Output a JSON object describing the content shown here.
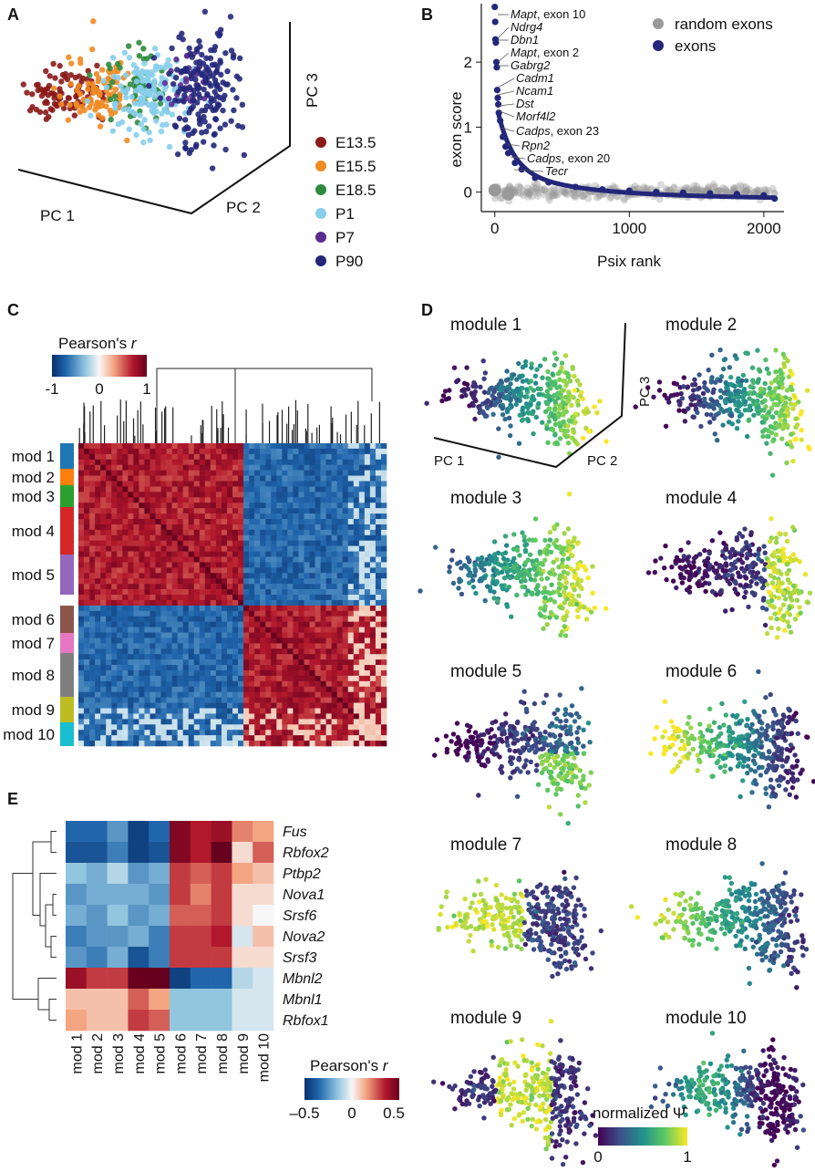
{
  "panels": {
    "a": {
      "letter": "A",
      "axes": [
        "PC 1",
        "PC 2",
        "PC 3"
      ],
      "legend": [
        {
          "label": "E13.5",
          "color": "#8b1a1a"
        },
        {
          "label": "E15.5",
          "color": "#f08a24"
        },
        {
          "label": "E18.5",
          "color": "#2e8b3e"
        },
        {
          "label": "P1",
          "color": "#87ceeb"
        },
        {
          "label": "P7",
          "color": "#5a2d8e"
        },
        {
          "label": "P90",
          "color": "#23277a"
        }
      ]
    },
    "b": {
      "letter": "B",
      "legend": [
        {
          "label": "random exons",
          "color": "#999999"
        },
        {
          "label": "exons",
          "color": "#23277a"
        }
      ],
      "annotations": [
        {
          "gene": "Mapt",
          "suffix": ", exon 10"
        },
        {
          "gene": "Ndrg4",
          "suffix": ""
        },
        {
          "gene": "Dbn1",
          "suffix": ""
        },
        {
          "gene": "Mapt",
          "suffix": ", exon 2"
        },
        {
          "gene": "Gabrg2",
          "suffix": ""
        },
        {
          "gene": "Cadm1",
          "suffix": ""
        },
        {
          "gene": "Ncam1",
          "suffix": ""
        },
        {
          "gene": "Dst",
          "suffix": ""
        },
        {
          "gene": "Morf4l2",
          "suffix": ""
        },
        {
          "gene": "Cadps",
          "suffix": ", exon 23"
        },
        {
          "gene": "Rpn2",
          "suffix": ""
        },
        {
          "gene": "Cadps",
          "suffix": ", exon 20"
        },
        {
          "gene": "Tecr",
          "suffix": ""
        }
      ]
    },
    "c": {
      "letter": "C",
      "colorbar_title": "Pearson's ",
      "colorbar_title_var": "r",
      "colorbar_ticks": [
        "-1",
        "0",
        "1"
      ],
      "modules": [
        {
          "label": "mod 1",
          "color": "#1f77b4"
        },
        {
          "label": "mod 2",
          "color": "#ff7f0e"
        },
        {
          "label": "mod 3",
          "color": "#2ca02c"
        },
        {
          "label": "mod 4",
          "color": "#d62728"
        },
        {
          "label": "mod 5",
          "color": "#9467bd"
        },
        {
          "label": "mod 6",
          "color": "#8c564b"
        },
        {
          "label": "mod 7",
          "color": "#e377c2"
        },
        {
          "label": "mod 8",
          "color": "#7f7f7f"
        },
        {
          "label": "mod 9",
          "color": "#bcbd22"
        },
        {
          "label": "mod 10",
          "color": "#17becf"
        }
      ]
    },
    "d": {
      "letter": "D",
      "modules": [
        "module 1",
        "module 2",
        "module 3",
        "module 4",
        "module 5",
        "module 6",
        "module 7",
        "module 8",
        "module 9",
        "module 10"
      ],
      "axes": [
        "PC 1",
        "PC 2",
        "PC 3"
      ],
      "colorbar_title": "normalized ",
      "colorbar_symbol": "Ψ̂",
      "colorbar_ticks": [
        "0",
        "1"
      ]
    },
    "e": {
      "letter": "E",
      "rows": [
        "Fus",
        "Rbfox2",
        "Ptbp2",
        "Nova1",
        "Srsf6",
        "Nova2",
        "Srsf3",
        "Mbnl2",
        "Mbnl1",
        "Rbfox1"
      ],
      "cols": [
        "mod 1",
        "mod 2",
        "mod 3",
        "mod 4",
        "mod 5",
        "mod 6",
        "mod 7",
        "mod 8",
        "mod 9",
        "mod 10"
      ],
      "colorbar_title": "Pearson's ",
      "colorbar_title_var": "r",
      "colorbar_ticks": [
        "–0.5",
        "0",
        "0.5"
      ]
    }
  },
  "chart_data": [
    {
      "type": "scatter",
      "panel": "B",
      "xlabel": "Psix rank",
      "ylabel": "exon score",
      "xlim": [
        -100,
        2150
      ],
      "ylim": [
        -0.3,
        2.9
      ],
      "x_ticks": [
        0,
        1000,
        2000
      ],
      "y_ticks": [
        0,
        1,
        2
      ],
      "grid": false,
      "legend_position": "top-right",
      "series": [
        {
          "name": "random exons",
          "color": "#999999",
          "points": [
            [
              0,
              0.04
            ],
            [
              50,
              0.02
            ],
            [
              100,
              -0.03
            ],
            [
              200,
              0.05
            ],
            [
              400,
              -0.02
            ],
            [
              600,
              0.03
            ],
            [
              800,
              -0.04
            ],
            [
              1000,
              0.02
            ],
            [
              1200,
              -0.03
            ],
            [
              1400,
              0.04
            ],
            [
              1600,
              -0.02
            ],
            [
              1800,
              0.03
            ],
            [
              2000,
              -0.03
            ],
            [
              2080,
              0.02
            ]
          ]
        },
        {
          "name": "exons",
          "color": "#23277a",
          "points": [
            [
              0,
              2.85
            ],
            [
              3,
              2.62
            ],
            [
              5,
              2.35
            ],
            [
              8,
              2.3
            ],
            [
              12,
              2.0
            ],
            [
              15,
              1.92
            ],
            [
              18,
              1.57
            ],
            [
              22,
              1.45
            ],
            [
              26,
              1.35
            ],
            [
              30,
              1.22
            ],
            [
              40,
              1.1
            ],
            [
              60,
              0.85
            ],
            [
              80,
              0.7
            ],
            [
              100,
              0.6
            ],
            [
              150,
              0.45
            ],
            [
              200,
              0.35
            ],
            [
              300,
              0.22
            ],
            [
              400,
              0.15
            ],
            [
              600,
              0.08
            ],
            [
              800,
              0.04
            ],
            [
              1000,
              0.02
            ],
            [
              1200,
              0.0
            ],
            [
              1400,
              -0.01
            ],
            [
              1600,
              -0.02
            ],
            [
              1800,
              -0.03
            ],
            [
              2000,
              -0.05
            ],
            [
              2080,
              -0.1
            ]
          ]
        }
      ]
    },
    {
      "type": "heatmap",
      "panel": "E",
      "rows": [
        "Fus",
        "Rbfox2",
        "Ptbp2",
        "Nova1",
        "Srsf6",
        "Nova2",
        "Srsf3",
        "Mbnl2",
        "Mbnl1",
        "Rbfox1"
      ],
      "cols": [
        "mod 1",
        "mod 2",
        "mod 3",
        "mod 4",
        "mod 5",
        "mod 6",
        "mod 7",
        "mod 8",
        "mod 9",
        "mod 10"
      ],
      "values": [
        [
          -0.35,
          -0.35,
          -0.25,
          -0.45,
          -0.35,
          0.45,
          0.35,
          0.4,
          0.2,
          0.15
        ],
        [
          -0.4,
          -0.4,
          -0.3,
          -0.45,
          -0.4,
          0.45,
          0.35,
          0.55,
          0.05,
          0.25
        ],
        [
          -0.15,
          -0.2,
          -0.1,
          -0.25,
          -0.2,
          0.3,
          0.25,
          0.3,
          0.15,
          0.1
        ],
        [
          -0.25,
          -0.2,
          -0.2,
          -0.2,
          -0.25,
          0.3,
          0.2,
          0.3,
          0.05,
          0.05
        ],
        [
          -0.2,
          -0.25,
          -0.15,
          -0.25,
          -0.2,
          0.25,
          0.25,
          0.3,
          0.05,
          0.0
        ],
        [
          -0.3,
          -0.25,
          -0.25,
          -0.2,
          -0.3,
          0.3,
          0.3,
          0.35,
          -0.05,
          0.1
        ],
        [
          -0.25,
          -0.3,
          -0.2,
          -0.4,
          -0.3,
          0.3,
          0.3,
          0.3,
          0.05,
          0.05
        ],
        [
          0.4,
          0.3,
          0.3,
          0.6,
          0.5,
          -0.45,
          -0.35,
          -0.35,
          -0.1,
          -0.05
        ],
        [
          0.1,
          0.1,
          0.1,
          0.25,
          0.15,
          -0.15,
          -0.15,
          -0.15,
          -0.05,
          -0.05
        ],
        [
          0.15,
          0.1,
          0.1,
          0.3,
          0.25,
          -0.15,
          -0.15,
          -0.15,
          -0.05,
          -0.05
        ]
      ],
      "vmin": -0.5,
      "vmax": 0.5
    }
  ]
}
